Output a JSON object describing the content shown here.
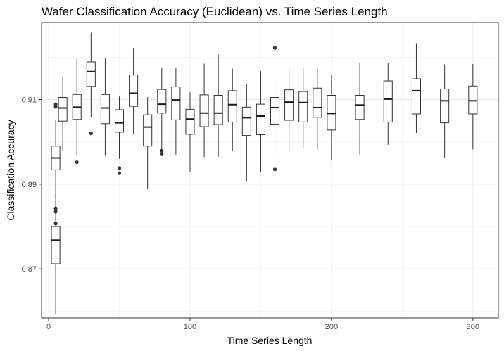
{
  "chart_data": {
    "type": "boxplot",
    "title": "Wafer Classification Accuracy (Euclidean) vs. Time Series Length",
    "xlabel": "Time Series Length",
    "ylabel": "Classification Accuracy",
    "xlim": [
      -5,
      318
    ],
    "ylim": [
      0.8584,
      0.9282
    ],
    "xticks": [
      0,
      100,
      200,
      300
    ],
    "xtick_labels": [
      "0",
      "100",
      "200",
      "300"
    ],
    "yticks": [
      0.87,
      0.89,
      0.91
    ],
    "ytick_labels": [
      "0.87",
      "0.89",
      "0.91"
    ],
    "grid": true,
    "legend": "none",
    "box_width": 6,
    "boxes": [
      {
        "x": 5,
        "whisker_low": 0.8594,
        "q1": 0.8712,
        "median": 0.8768,
        "q3": 0.88,
        "whisker_high": 0.8876,
        "outliers": [
          0.8807,
          0.8835,
          0.8843
        ]
      },
      {
        "x": 5,
        "whisker_low": 0.8869,
        "q1": 0.8934,
        "median": 0.8962,
        "q3": 0.899,
        "whisker_high": 0.9051,
        "outliers": [
          0.9083,
          0.9089
        ]
      },
      {
        "x": 10,
        "whisker_low": 0.8978,
        "q1": 0.9049,
        "median": 0.908,
        "q3": 0.9105,
        "whisker_high": 0.9153,
        "outliers": []
      },
      {
        "x": 20,
        "whisker_low": 0.8968,
        "q1": 0.9053,
        "median": 0.9082,
        "q3": 0.9112,
        "whisker_high": 0.9198,
        "outliers": [
          0.8952
        ]
      },
      {
        "x": 30,
        "whisker_low": 0.9058,
        "q1": 0.9131,
        "median": 0.9166,
        "q3": 0.9189,
        "whisker_high": 0.9258,
        "outliers": [
          0.902
        ]
      },
      {
        "x": 40,
        "whisker_low": 0.8967,
        "q1": 0.9043,
        "median": 0.908,
        "q3": 0.9112,
        "whisker_high": 0.9197,
        "outliers": []
      },
      {
        "x": 50,
        "whisker_low": 0.896,
        "q1": 0.9023,
        "median": 0.9045,
        "q3": 0.9076,
        "whisker_high": 0.9107,
        "outliers": [
          0.8938,
          0.8926
        ]
      },
      {
        "x": 60,
        "whisker_low": 0.9019,
        "q1": 0.9084,
        "median": 0.9115,
        "q3": 0.9158,
        "whisker_high": 0.9222,
        "outliers": []
      },
      {
        "x": 70,
        "whisker_low": 0.8888,
        "q1": 0.899,
        "median": 0.9035,
        "q3": 0.9064,
        "whisker_high": 0.9106,
        "outliers": []
      },
      {
        "x": 80,
        "whisker_low": 0.8981,
        "q1": 0.9068,
        "median": 0.9089,
        "q3": 0.9124,
        "whisker_high": 0.9176,
        "outliers": [
          0.8979,
          0.8971
        ]
      },
      {
        "x": 90,
        "whisker_low": 0.897,
        "q1": 0.9052,
        "median": 0.9099,
        "q3": 0.913,
        "whisker_high": 0.9174,
        "outliers": []
      },
      {
        "x": 100,
        "whisker_low": 0.893,
        "q1": 0.9018,
        "median": 0.9054,
        "q3": 0.9077,
        "whisker_high": 0.9117,
        "outliers": []
      },
      {
        "x": 110,
        "whisker_low": 0.8964,
        "q1": 0.9036,
        "median": 0.9068,
        "q3": 0.9111,
        "whisker_high": 0.9185,
        "outliers": []
      },
      {
        "x": 120,
        "whisker_low": 0.8965,
        "q1": 0.9041,
        "median": 0.9068,
        "q3": 0.911,
        "whisker_high": 0.9206,
        "outliers": []
      },
      {
        "x": 130,
        "whisker_low": 0.8978,
        "q1": 0.9047,
        "median": 0.9088,
        "q3": 0.9121,
        "whisker_high": 0.9173,
        "outliers": []
      },
      {
        "x": 140,
        "whisker_low": 0.8908,
        "q1": 0.9015,
        "median": 0.9057,
        "q3": 0.9082,
        "whisker_high": 0.9136,
        "outliers": []
      },
      {
        "x": 150,
        "whisker_low": 0.8928,
        "q1": 0.9017,
        "median": 0.9061,
        "q3": 0.9089,
        "whisker_high": 0.9167,
        "outliers": []
      },
      {
        "x": 160,
        "whisker_low": 0.8969,
        "q1": 0.9042,
        "median": 0.9081,
        "q3": 0.9105,
        "whisker_high": 0.9136,
        "outliers": [
          0.9222,
          0.8935
        ]
      },
      {
        "x": 170,
        "whisker_low": 0.8976,
        "q1": 0.9051,
        "median": 0.9094,
        "q3": 0.9123,
        "whisker_high": 0.9176,
        "outliers": []
      },
      {
        "x": 180,
        "whisker_low": 0.8986,
        "q1": 0.9047,
        "median": 0.9093,
        "q3": 0.9119,
        "whisker_high": 0.9174,
        "outliers": []
      },
      {
        "x": 190,
        "whisker_low": 0.8981,
        "q1": 0.9058,
        "median": 0.9081,
        "q3": 0.9127,
        "whisker_high": 0.9172,
        "outliers": []
      },
      {
        "x": 200,
        "whisker_low": 0.8956,
        "q1": 0.9028,
        "median": 0.9067,
        "q3": 0.911,
        "whisker_high": 0.9158,
        "outliers": []
      },
      {
        "x": 220,
        "whisker_low": 0.897,
        "q1": 0.9053,
        "median": 0.9087,
        "q3": 0.911,
        "whisker_high": 0.9187,
        "outliers": []
      },
      {
        "x": 240,
        "whisker_low": 0.8993,
        "q1": 0.9047,
        "median": 0.9101,
        "q3": 0.9144,
        "whisker_high": 0.9186,
        "outliers": []
      },
      {
        "x": 260,
        "whisker_low": 0.9021,
        "q1": 0.9066,
        "median": 0.9121,
        "q3": 0.9149,
        "whisker_high": 0.9233,
        "outliers": []
      },
      {
        "x": 280,
        "whisker_low": 0.8963,
        "q1": 0.9045,
        "median": 0.9097,
        "q3": 0.9125,
        "whisker_high": 0.9183,
        "outliers": []
      },
      {
        "x": 300,
        "whisker_low": 0.8982,
        "q1": 0.9066,
        "median": 0.9097,
        "q3": 0.9132,
        "whisker_high": 0.9184,
        "outliers": []
      }
    ]
  }
}
